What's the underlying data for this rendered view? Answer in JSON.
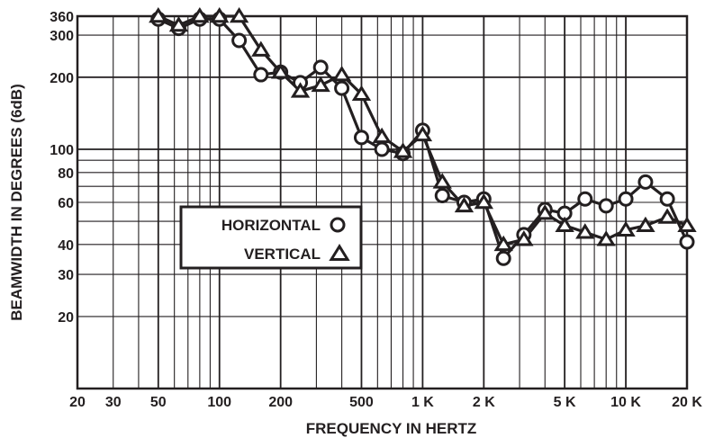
{
  "chart_data": {
    "type": "line",
    "xlabel": "FREQUENCY IN HERTZ",
    "ylabel": "BEAMWIDTH IN DEGREES (6dB)",
    "xscale": "log",
    "yscale": "log",
    "xlim": [
      20,
      20000
    ],
    "ylim": [
      10,
      360
    ],
    "grid": true,
    "legend_position": "center-left",
    "x_ticks": [
      {
        "value": 20,
        "label": "20"
      },
      {
        "value": 30,
        "label": "30"
      },
      {
        "value": 50,
        "label": "50"
      },
      {
        "value": 100,
        "label": "100"
      },
      {
        "value": 200,
        "label": "200"
      },
      {
        "value": 500,
        "label": "500"
      },
      {
        "value": 1000,
        "label": "1 K"
      },
      {
        "value": 2000,
        "label": "2 K"
      },
      {
        "value": 5000,
        "label": "5 K"
      },
      {
        "value": 10000,
        "label": "10 K"
      },
      {
        "value": 20000,
        "label": "20 K"
      }
    ],
    "y_ticks": [
      {
        "value": 360,
        "label": "360"
      },
      {
        "value": 300,
        "label": "300"
      },
      {
        "value": 200,
        "label": "200"
      },
      {
        "value": 100,
        "label": "100"
      },
      {
        "value": 80,
        "label": "80"
      },
      {
        "value": 60,
        "label": "60"
      },
      {
        "value": 40,
        "label": "40"
      },
      {
        "value": 30,
        "label": "30"
      },
      {
        "value": 20,
        "label": "20"
      }
    ],
    "series": [
      {
        "name": "HORIZONTAL",
        "marker": "circle",
        "x": [
          50,
          63,
          80,
          100,
          125,
          160,
          200,
          250,
          315,
          400,
          500,
          630,
          800,
          1000,
          1250,
          1600,
          2000,
          2500,
          3150,
          4000,
          5000,
          6300,
          8000,
          10000,
          12500,
          16000,
          20000
        ],
        "y": [
          350,
          320,
          350,
          350,
          285,
          205,
          210,
          190,
          220,
          180,
          112,
          100,
          96,
          120,
          64,
          60,
          62,
          35,
          44,
          56,
          54,
          62,
          58,
          62,
          73,
          62,
          41
        ]
      },
      {
        "name": "VERTICAL",
        "marker": "triangle",
        "x": [
          50,
          63,
          80,
          100,
          125,
          160,
          200,
          250,
          315,
          400,
          500,
          630,
          800,
          1000,
          1250,
          1600,
          2000,
          2500,
          3150,
          4000,
          5000,
          6300,
          8000,
          10000,
          12500,
          16000,
          20000
        ],
        "y": [
          360,
          330,
          360,
          360,
          360,
          260,
          210,
          175,
          185,
          205,
          170,
          113,
          98,
          115,
          73,
          58,
          60,
          40,
          42,
          54,
          48,
          45,
          42,
          46,
          48,
          52,
          48
        ]
      }
    ]
  },
  "colors": {
    "ink": "#231f20",
    "background": "#ffffff"
  }
}
